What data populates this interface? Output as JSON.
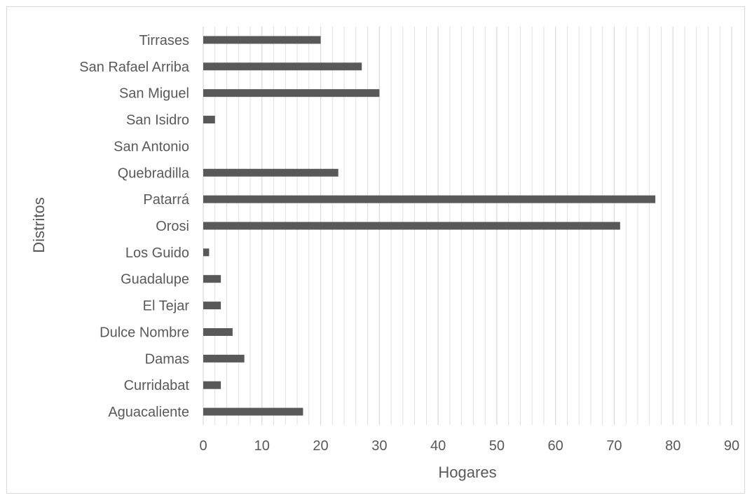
{
  "chart_data": {
    "type": "bar",
    "orientation": "horizontal",
    "categories": [
      "Aguacaliente",
      "Curridabat",
      "Damas",
      "Dulce Nombre",
      "El Tejar",
      "Guadalupe",
      "Los Guido",
      "Orosi",
      "Patarrá",
      "Quebradilla",
      "San Antonio",
      "San Isidro",
      "San Miguel",
      "San Rafael Arriba",
      "Tirrases"
    ],
    "values": [
      17,
      3,
      7,
      5,
      3,
      3,
      1,
      71,
      77,
      23,
      0,
      2,
      30,
      27,
      20
    ],
    "xlabel": "Hogares",
    "ylabel": "Distritos",
    "xlim": [
      0,
      90
    ],
    "x_ticks": [
      "0",
      "10",
      "20",
      "30",
      "40",
      "50",
      "60",
      "70",
      "80",
      "90"
    ],
    "grid": "vertical minor and major",
    "legend": "none",
    "bar_color": "#595959",
    "grid_color": "#d9d9d9"
  }
}
